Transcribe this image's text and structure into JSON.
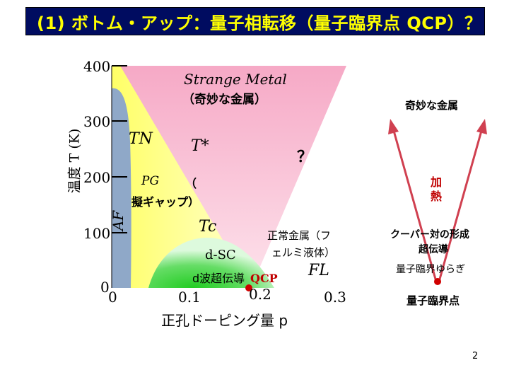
{
  "slide": {
    "title": "(1) ボトム・アップ：量子相転移（量子臨界点 QCP）？",
    "page_number": "2"
  },
  "axes": {
    "y_label": "温度 T (K)",
    "y_ticks": [
      "400",
      "300",
      "200",
      "100",
      "0"
    ],
    "x_label": "正孔ドーピング量 p",
    "x_ticks": [
      "0",
      "0.1",
      "0.2",
      "0.3"
    ]
  },
  "phases": {
    "strange_metal": "Strange Metal",
    "strange_metal_jp": "（奇妙な金属）",
    "tn": "TN",
    "t_star": "T*",
    "question": "？",
    "pg": "PG",
    "pg_paren": "（",
    "pg_jp": "擬ギャップ）",
    "af": "AF",
    "tc": "Tc",
    "dsc": "d-SC",
    "dsc_jp": "d波超伝導",
    "qcp": "QCP",
    "normal_metal": "正常金属（フ",
    "normal_metal_2": "ェルミ液体）",
    "fl": "FL"
  },
  "right_diagram": {
    "top_label": "奇妙な金属",
    "heating": "加熱",
    "cooper": "クーパー対の形成",
    "cooper_2": "超伝導",
    "fluctuation": "量子臨界ゆらぎ",
    "qcp_label": "量子臨界点"
  },
  "colors": {
    "title_bg": "#000c60",
    "title_fg": "#ffff00",
    "strange_metal": "#f7b8cf",
    "pseudogap": "#ffff99",
    "af": "#8fa8c8",
    "sc": "#33cc33",
    "arrow": "#d04050",
    "qcp_dot": "#d00000"
  }
}
